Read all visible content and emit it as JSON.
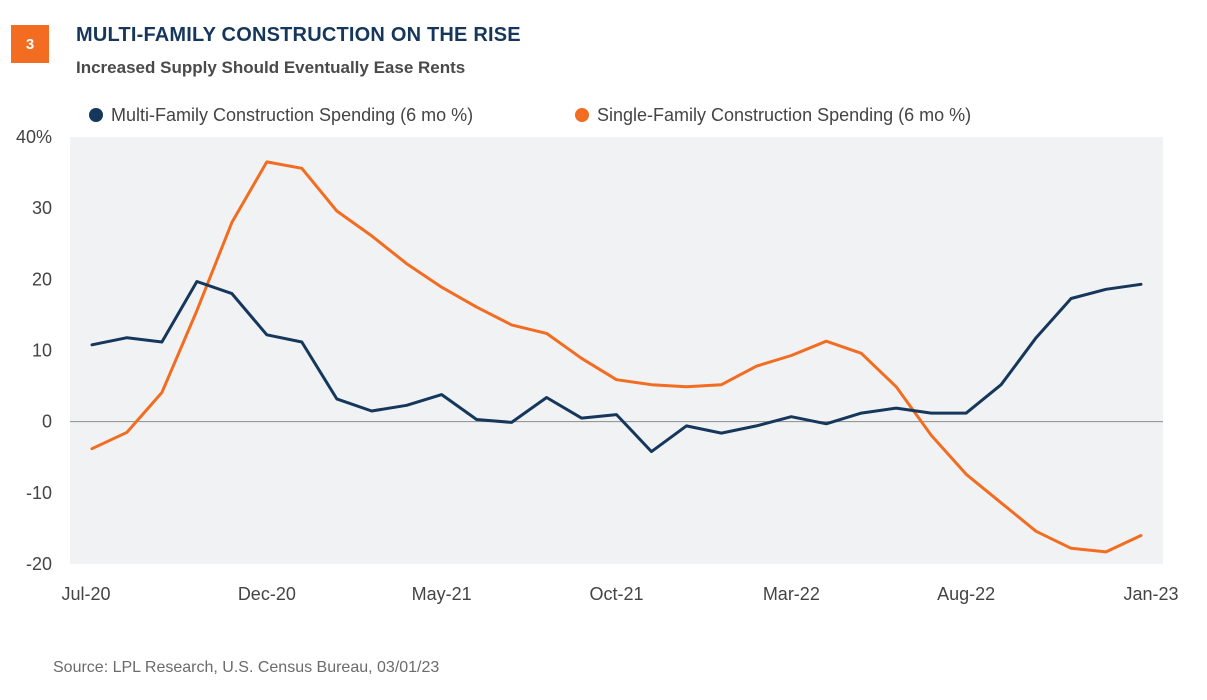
{
  "header": {
    "badge": "3",
    "title": "MULTI-FAMILY CONSTRUCTION ON THE RISE",
    "subtitle": "Increased Supply Should Eventually Ease Rents"
  },
  "footer": {
    "source": "Source: LPL Research, U.S. Census Bureau, 03/01/23"
  },
  "colors": {
    "multi": "#16375c",
    "single": "#f26d21",
    "plot_bg": "#f1f2f4",
    "badge": "#f26d21"
  },
  "chart_data": {
    "type": "line",
    "title": "",
    "xlabel": "",
    "ylabel": "",
    "ylim": [
      -20,
      40
    ],
    "y_ticks": [
      "40%",
      "30",
      "20",
      "10",
      "0",
      "-10",
      "-20"
    ],
    "y_tick_values": [
      40,
      30,
      20,
      10,
      0,
      -10,
      -20
    ],
    "x_tick_labels": [
      "Jul-20",
      "Dec-20",
      "May-21",
      "Oct-21",
      "Mar-22",
      "Aug-22",
      "Jan-23"
    ],
    "x_tick_positions": [
      0,
      5,
      10,
      15,
      20,
      25,
      30
    ],
    "x": [
      "Jul-20",
      "Aug-20",
      "Sep-20",
      "Oct-20",
      "Nov-20",
      "Dec-20",
      "Jan-21",
      "Feb-21",
      "Mar-21",
      "Apr-21",
      "May-21",
      "Jun-21",
      "Jul-21",
      "Aug-21",
      "Sep-21",
      "Oct-21",
      "Nov-21",
      "Dec-21",
      "Jan-22",
      "Feb-22",
      "Mar-22",
      "Apr-22",
      "May-22",
      "Jun-22",
      "Jul-22",
      "Aug-22",
      "Sep-22",
      "Oct-22",
      "Nov-22",
      "Dec-22",
      "Jan-23"
    ],
    "legend_position": "top",
    "grid": false,
    "series": [
      {
        "name": "Multi-Family Construction Spending (6 mo %)",
        "color": "#16375c",
        "values": [
          10.8,
          11.8,
          11.2,
          19.7,
          18.0,
          12.2,
          11.2,
          3.2,
          1.5,
          2.3,
          3.8,
          0.3,
          -0.1,
          3.4,
          0.5,
          1.0,
          -4.2,
          -0.6,
          -1.6,
          -0.6,
          0.7,
          -0.3,
          1.2,
          1.9,
          1.2,
          1.2,
          5.2,
          11.8,
          17.3,
          18.6,
          19.3
        ]
      },
      {
        "name": "Single-Family Construction Spending (6 mo %)",
        "color": "#f26d21",
        "values": [
          -3.8,
          -1.5,
          4.1,
          15.6,
          28.0,
          36.5,
          35.6,
          29.6,
          26.1,
          22.2,
          18.9,
          16.1,
          13.6,
          12.4,
          8.9,
          5.9,
          5.2,
          4.9,
          5.2,
          7.8,
          9.3,
          11.3,
          9.6,
          4.9,
          -1.9,
          -7.4,
          -11.4,
          -15.4,
          -17.8,
          -18.3,
          -16.0
        ]
      }
    ]
  }
}
